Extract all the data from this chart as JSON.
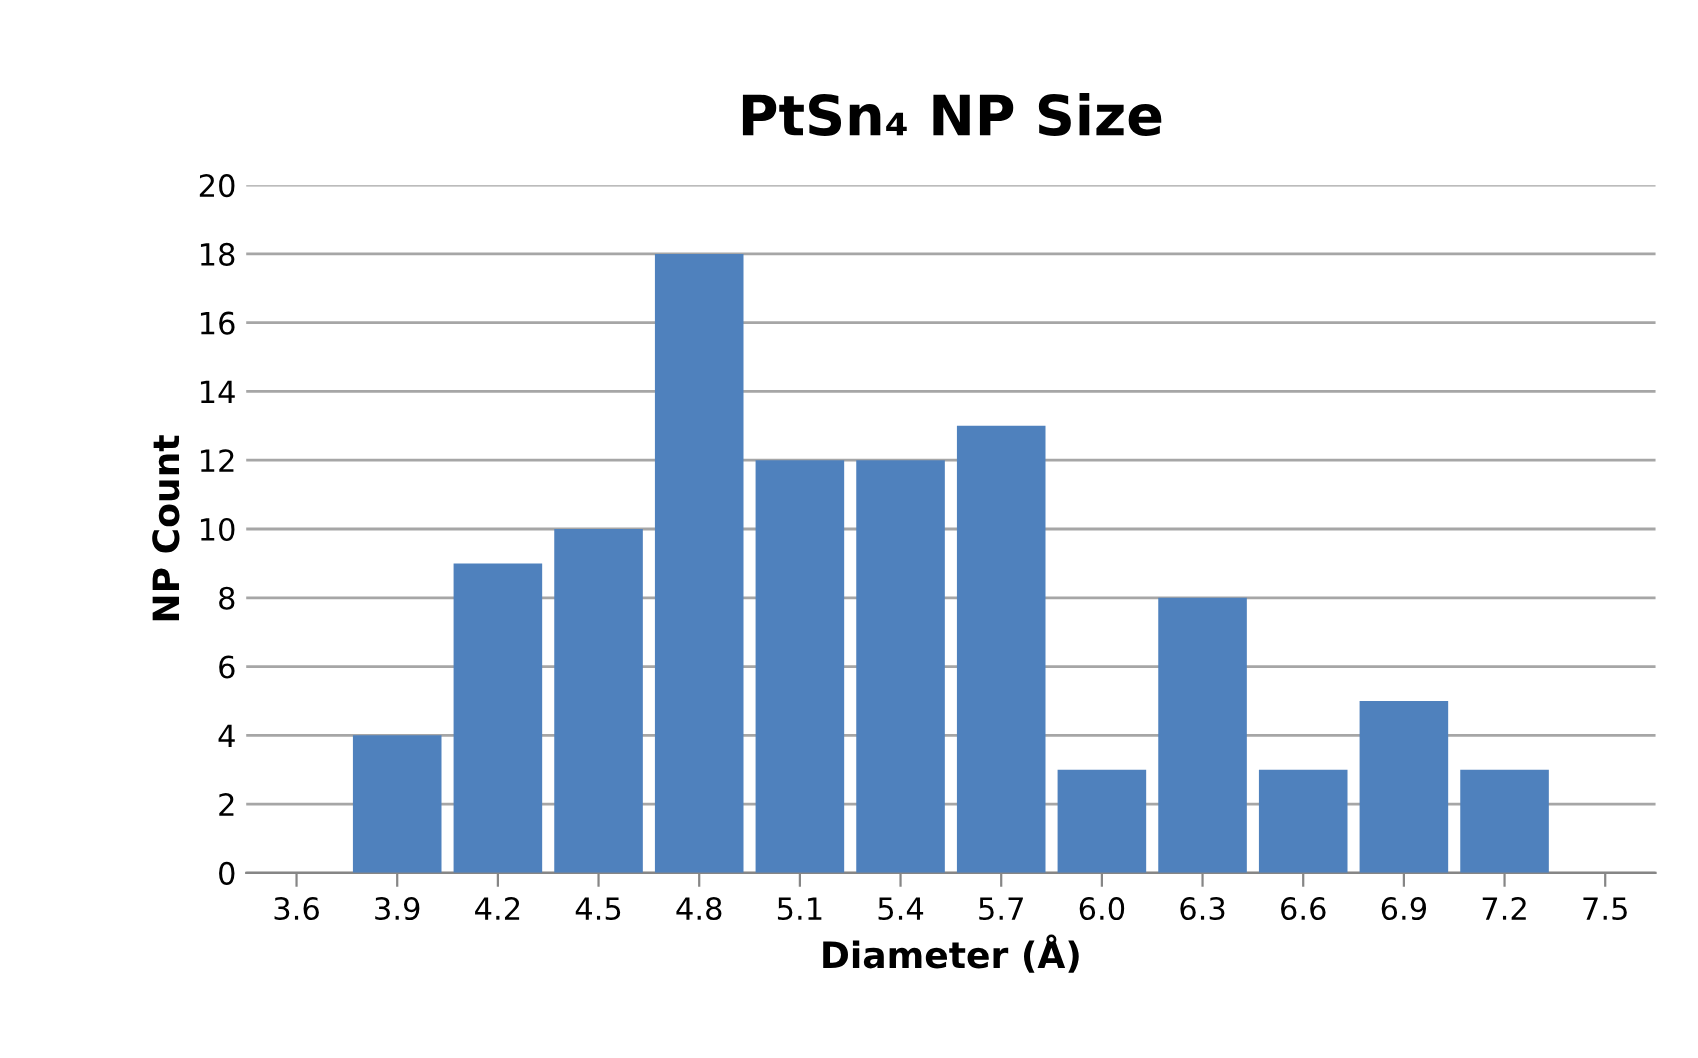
{
  "chart_data": {
    "type": "bar",
    "title": "PtSn₄ NP Size",
    "xlabel": "Diameter (Å)",
    "ylabel": "NP Count",
    "categories": [
      "3.6",
      "3.9",
      "4.2",
      "4.5",
      "4.8",
      "5.1",
      "5.4",
      "5.7",
      "6.0",
      "6.3",
      "6.6",
      "6.9",
      "7.2",
      "7.5"
    ],
    "values": [
      0,
      4,
      9,
      10,
      18,
      12,
      12,
      13,
      3,
      8,
      3,
      5,
      3,
      0
    ],
    "color": "#4f81bd",
    "ylim": [
      0,
      20
    ],
    "yticks": [
      0,
      2,
      4,
      6,
      8,
      10,
      12,
      14,
      16,
      18,
      20
    ],
    "grid": "y"
  }
}
